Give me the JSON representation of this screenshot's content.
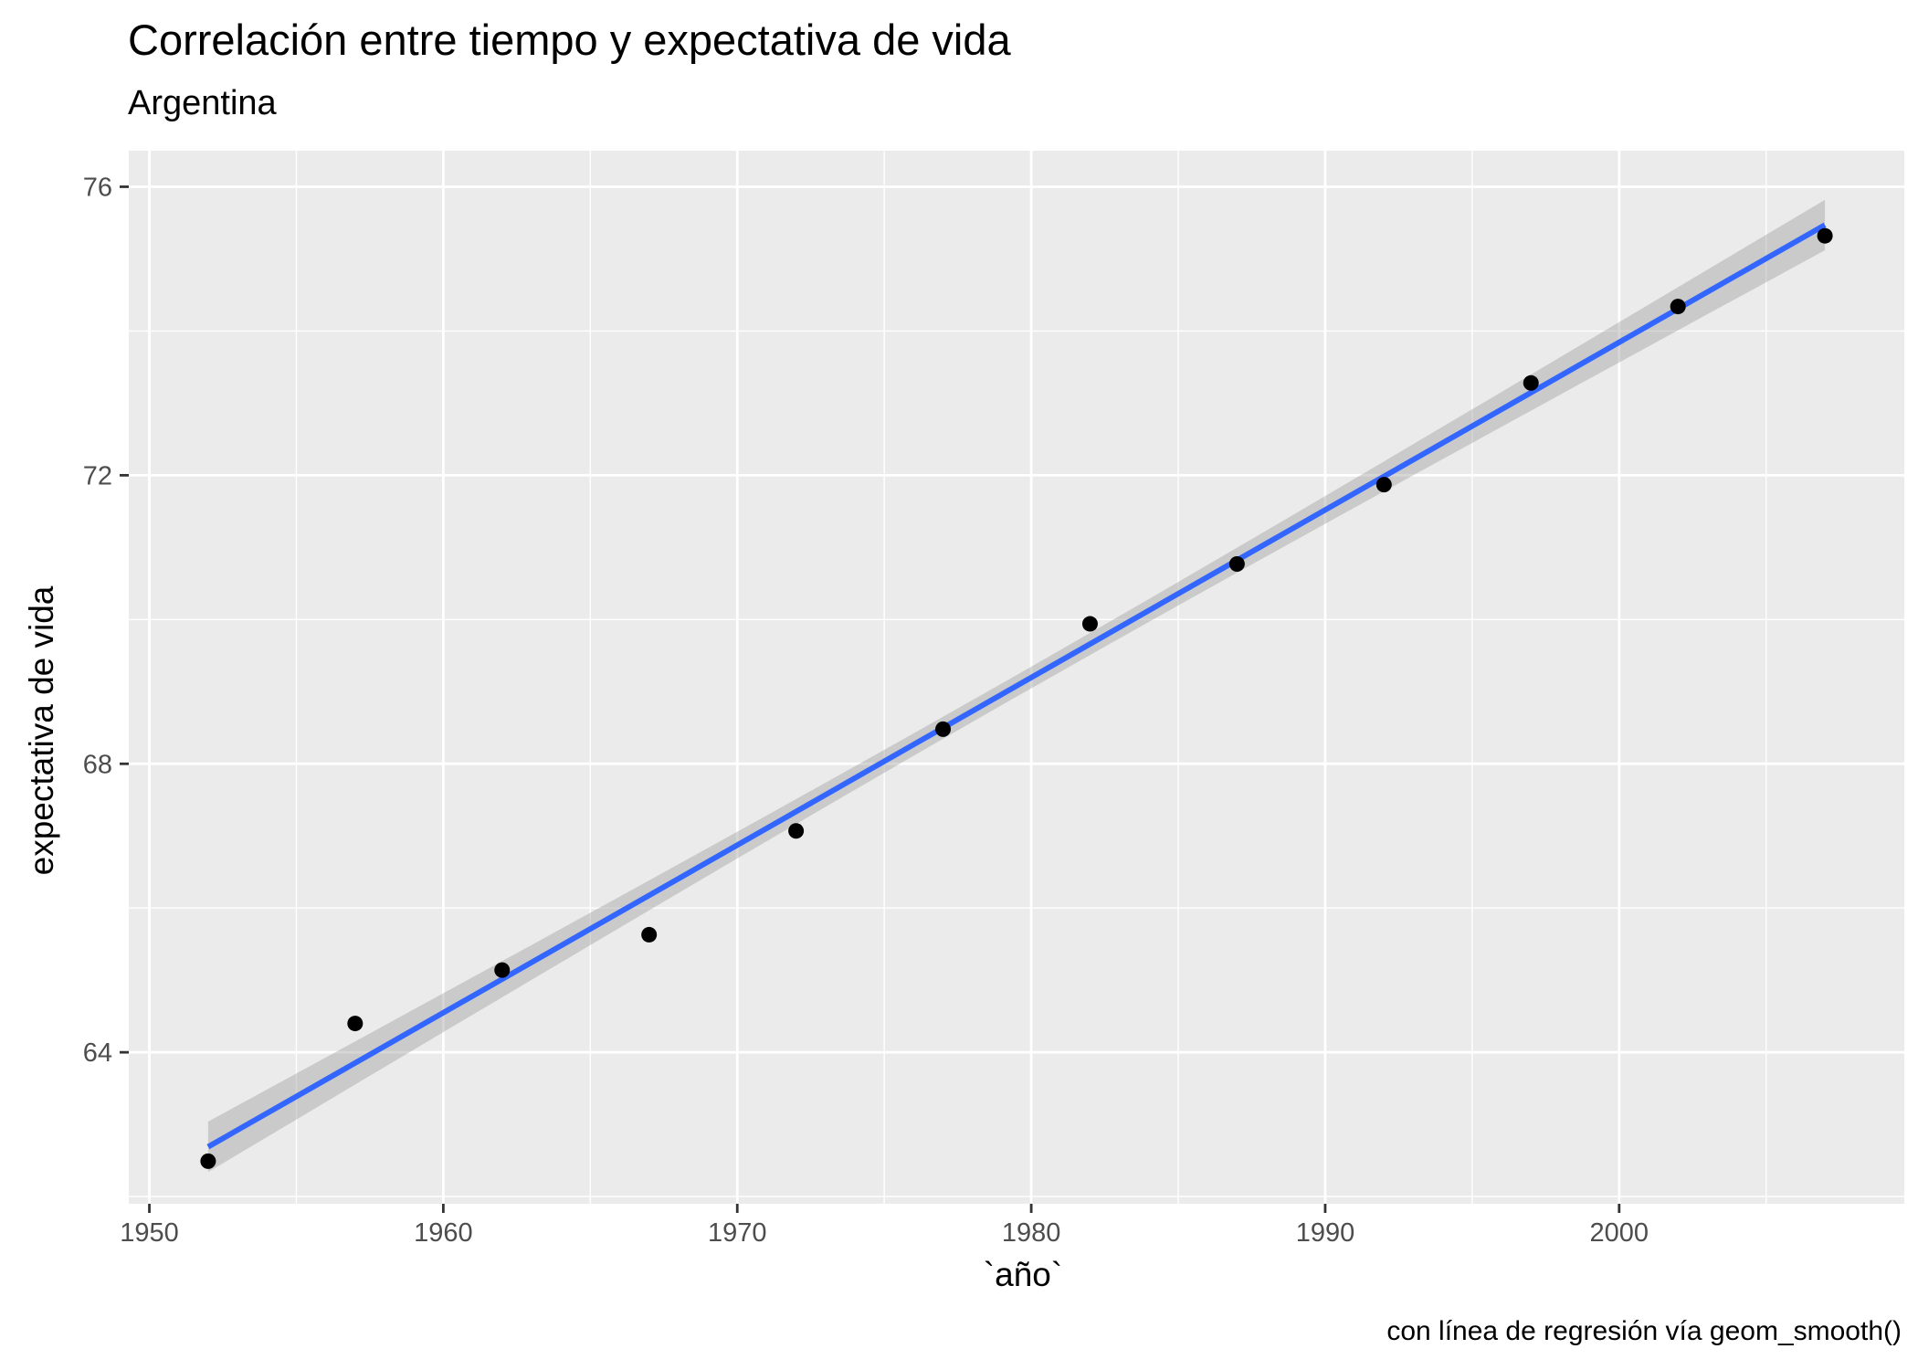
{
  "chart_data": {
    "type": "scatter",
    "title": "Correlación entre tiempo y expectativa de vida",
    "subtitle": "Argentina",
    "xlabel": "`año`",
    "ylabel": "expectativa de vida",
    "caption": "con línea de regresión vía geom_smooth()",
    "xlim": [
      1949.3,
      2009.7
    ],
    "ylim": [
      61.9,
      76.5
    ],
    "x_ticks": [
      1950,
      1960,
      1970,
      1980,
      1990,
      2000
    ],
    "y_ticks": [
      64,
      68,
      72,
      76
    ],
    "grid": true,
    "points": [
      {
        "x": 1952,
        "y": 62.49
      },
      {
        "x": 1957,
        "y": 64.4
      },
      {
        "x": 1962,
        "y": 65.14
      },
      {
        "x": 1967,
        "y": 65.63
      },
      {
        "x": 1972,
        "y": 67.07
      },
      {
        "x": 1977,
        "y": 68.48
      },
      {
        "x": 1982,
        "y": 69.94
      },
      {
        "x": 1987,
        "y": 70.77
      },
      {
        "x": 1992,
        "y": 71.87
      },
      {
        "x": 1997,
        "y": 73.28
      },
      {
        "x": 2002,
        "y": 74.34
      },
      {
        "x": 2007,
        "y": 75.32
      }
    ],
    "regression": {
      "x_start": 1952,
      "x_end": 2007,
      "y_start": 62.69,
      "y_end": 75.47,
      "ci_halfwidth_ends": 0.35,
      "ci_halfwidth_mid": 0.15
    },
    "colors": {
      "panel": "#ebebeb",
      "grid": "#ffffff",
      "points": "#000000",
      "line": "#3366ff",
      "ribbon": "#c6c6c6"
    }
  }
}
